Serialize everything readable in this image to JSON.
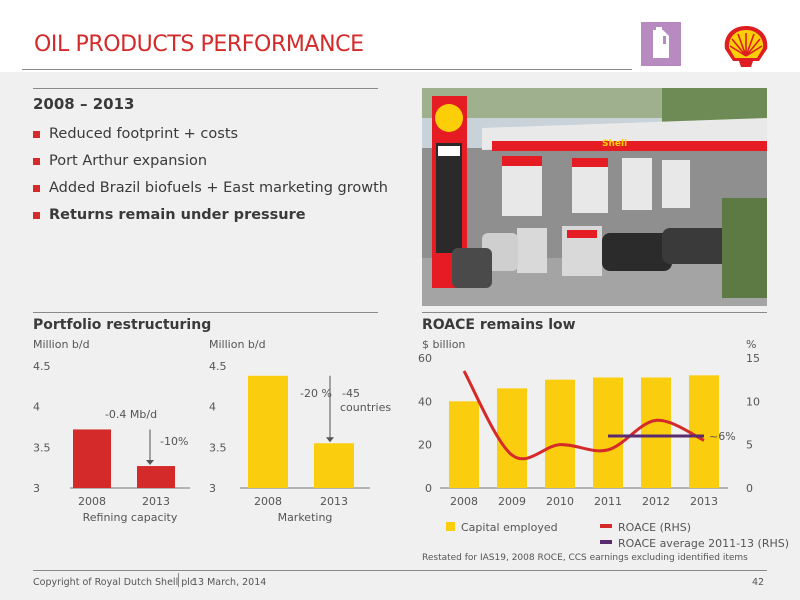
{
  "header": {
    "title": "OIL PRODUCTS PERFORMANCE"
  },
  "summary": {
    "subtitle": "2008 – 2013",
    "bullets": [
      "Reduced footprint + costs",
      "Port Arthur expansion",
      "Added Brazil biofuels + East marketing growth",
      "Returns remain under pressure"
    ]
  },
  "portfolio": {
    "title": "Portfolio restructuring"
  },
  "roace_section": {
    "title": "ROACE remains low"
  },
  "colors": {
    "red": "#d42a2a",
    "yellow": "#fbcd0f",
    "purple": "#5a2a6e",
    "shell_red": "#dd1d21",
    "shell_yellow": "#fbce07"
  },
  "chart_data": [
    {
      "type": "bar",
      "ylabel": "Million b/d",
      "xlabel": "Refining capacity",
      "ylim": [
        3,
        4.5
      ],
      "yticks": [
        "4.5",
        "4",
        "3.5",
        "3"
      ],
      "categories": [
        "2008",
        "2013"
      ],
      "values": [
        3.72,
        3.27
      ],
      "color": "#d42a2a",
      "annotations": [
        "-0.4 Mb/d",
        "-10%"
      ]
    },
    {
      "type": "bar",
      "ylabel": "Million b/d",
      "xlabel": "Marketing",
      "ylim": [
        3,
        4.5
      ],
      "yticks": [
        "4.5",
        "4",
        "3.5",
        "3"
      ],
      "categories": [
        "2008",
        "2013"
      ],
      "values": [
        4.38,
        3.55
      ],
      "color": "#fbcd0f",
      "annotations": [
        "-20 %",
        "-45",
        "countries"
      ]
    },
    {
      "type": "bar",
      "ylabel": "$ billion",
      "y2label": "%",
      "ylim": [
        0,
        60
      ],
      "y2lim": [
        0,
        15
      ],
      "yticks": [
        "60",
        "40",
        "20",
        "0"
      ],
      "y2ticks": [
        "15",
        "10",
        "5",
        "0"
      ],
      "categories": [
        "2008",
        "2009",
        "2010",
        "2011",
        "2012",
        "2013"
      ],
      "series": [
        {
          "name": "Capital employed",
          "type": "bar",
          "values": [
            40,
            46,
            50,
            51,
            51,
            52
          ],
          "color": "#fbcd0f"
        },
        {
          "name": "ROACE (RHS)",
          "type": "line",
          "values": [
            13.5,
            3.8,
            5,
            4.4,
            7.8,
            5.5
          ],
          "color": "#d42a2a"
        },
        {
          "name": "ROACE average 2011-13 (RHS)",
          "type": "line",
          "x": [
            "2011",
            "2013"
          ],
          "values": [
            6,
            6
          ],
          "color": "#5a2a6e"
        }
      ],
      "annotation": "~6%",
      "note": "Restated for IAS19, 2008 ROCE, CCS earnings excluding identified items"
    }
  ],
  "footer": {
    "copyright": "Copyright of Royal Dutch Shell plc",
    "date": "13  March, 2014",
    "page": "42"
  }
}
